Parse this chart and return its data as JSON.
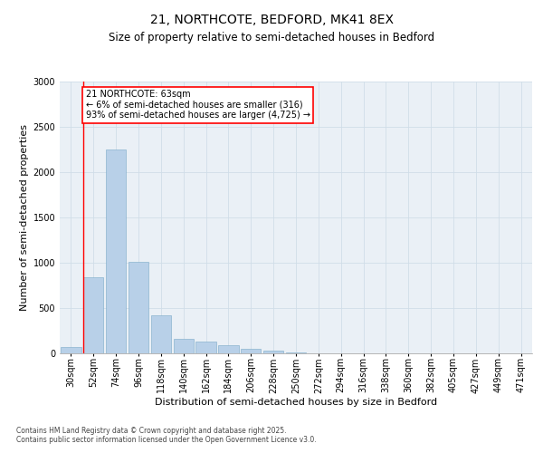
{
  "title_line1": "21, NORTHCOTE, BEDFORD, MK41 8EX",
  "title_line2": "Size of property relative to semi-detached houses in Bedford",
  "xlabel": "Distribution of semi-detached houses by size in Bedford",
  "ylabel": "Number of semi-detached properties",
  "footnote": "Contains HM Land Registry data © Crown copyright and database right 2025.\nContains public sector information licensed under the Open Government Licence v3.0.",
  "bar_labels": [
    "30sqm",
    "52sqm",
    "74sqm",
    "96sqm",
    "118sqm",
    "140sqm",
    "162sqm",
    "184sqm",
    "206sqm",
    "228sqm",
    "250sqm",
    "272sqm",
    "294sqm",
    "316sqm",
    "338sqm",
    "360sqm",
    "382sqm",
    "405sqm",
    "427sqm",
    "449sqm",
    "471sqm"
  ],
  "bar_values": [
    75,
    840,
    2250,
    1010,
    420,
    165,
    130,
    95,
    55,
    30,
    10,
    5,
    3,
    2,
    1,
    1,
    0,
    0,
    0,
    0,
    0
  ],
  "bar_color": "#b8d0e8",
  "bar_edge_color": "#7aaac8",
  "grid_color": "#d0dde8",
  "background_color": "#eaf0f6",
  "annotation_text": "21 NORTHCOTE: 63sqm\n← 6% of semi-detached houses are smaller (316)\n93% of semi-detached houses are larger (4,725) →",
  "property_bin_index": 1,
  "ylim": [
    0,
    3000
  ],
  "yticks": [
    0,
    500,
    1000,
    1500,
    2000,
    2500,
    3000
  ],
  "title_fontsize": 10,
  "subtitle_fontsize": 8.5,
  "axis_label_fontsize": 8,
  "tick_fontsize": 7,
  "annotation_fontsize": 7
}
